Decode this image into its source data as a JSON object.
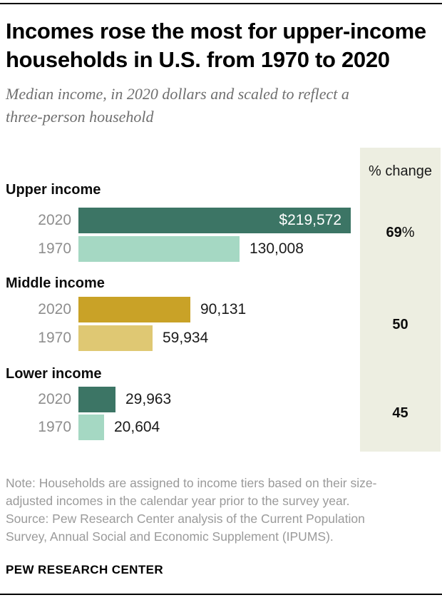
{
  "header": {
    "title": "Incomes rose the most for upper-income households in U.S. from 1970 to 2020",
    "title_lines": [
      "Incomes rose the most for upper-income",
      "households in U.S. from 1970 to 2020"
    ],
    "subtitle": "Median income, in 2020 dollars and scaled to reflect a three-person household",
    "subtitle_lines": [
      "Median income, in 2020 dollars and scaled to reflect a",
      "three-person household"
    ]
  },
  "chart_data": {
    "type": "bar",
    "orientation": "horizontal",
    "title": "Incomes rose the most for upper-income households in U.S. from 1970 to 2020",
    "subtitle": "Median income, in 2020 dollars and scaled to reflect a three-person household",
    "categories": [
      "Upper income",
      "Middle income",
      "Lower income"
    ],
    "series": [
      {
        "name": "2020",
        "values": [
          219572,
          90131,
          29963
        ]
      },
      {
        "name": "1970",
        "values": [
          130008,
          59934,
          20604
        ]
      }
    ],
    "value_labels": [
      [
        "$219,572",
        "130,008"
      ],
      [
        "90,131",
        "59,934"
      ],
      [
        "29,963",
        "20,604"
      ]
    ],
    "pct_change": [
      69,
      50,
      45
    ],
    "xlim": [
      0,
      219572
    ],
    "grid": false,
    "legend_position": "none"
  },
  "panel": {
    "header": "% change",
    "values": [
      {
        "num": "69",
        "suffix": "%"
      },
      {
        "num": "50",
        "suffix": ""
      },
      {
        "num": "45",
        "suffix": ""
      }
    ]
  },
  "groups": [
    {
      "label": "Upper income",
      "bars": [
        {
          "year": "2020",
          "value": 219572,
          "display": "$219,572",
          "label_inside": true,
          "color_key": "green_dark"
        },
        {
          "year": "1970",
          "value": 130008,
          "display": "130,008",
          "label_inside": false,
          "color_key": "green_light"
        }
      ]
    },
    {
      "label": "Middle income",
      "bars": [
        {
          "year": "2020",
          "value": 90131,
          "display": "90,131",
          "label_inside": false,
          "color_key": "gold_dark"
        },
        {
          "year": "1970",
          "value": 59934,
          "display": "59,934",
          "label_inside": false,
          "color_key": "gold_light"
        }
      ]
    },
    {
      "label": "Lower income",
      "bars": [
        {
          "year": "2020",
          "value": 29963,
          "display": "29,963",
          "label_inside": false,
          "color_key": "green_dark"
        },
        {
          "year": "1970",
          "value": 20604,
          "display": "20,604",
          "label_inside": false,
          "color_key": "green_light"
        }
      ]
    }
  ],
  "footer": {
    "note_lines": [
      "Note: Households are assigned to income tiers based on their size-",
      "adjusted incomes in the calendar year prior to the survey year.",
      "Source: Pew Research Center analysis of the Current Population",
      "Survey, Annual Social and Economic Supplement (IPUMS)."
    ],
    "brand": "PEW RESEARCH CENTER"
  },
  "colors": {
    "green_dark": "#3c7565",
    "green_light": "#a5d8c3",
    "gold_dark": "#c9a227",
    "gold_light": "#dfc873",
    "panel_bg": "#edeee1"
  }
}
